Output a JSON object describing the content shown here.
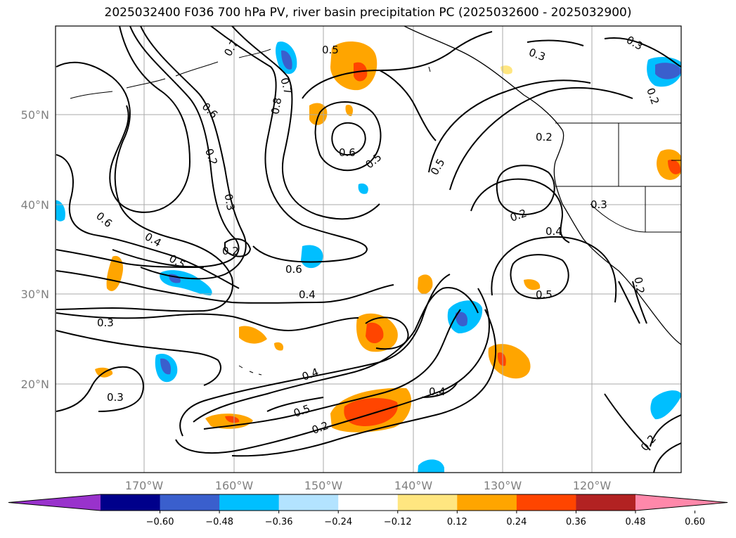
{
  "title": "2025032400 F036 700 hPa PV, river basin precipitation PC (2025032600 - 2025032900)",
  "map": {
    "lat_labels": [
      "50°N",
      "40°N",
      "30°N",
      "20°N"
    ],
    "lon_labels": [
      "170°W",
      "160°W",
      "150°W",
      "140°W",
      "130°W",
      "120°W"
    ],
    "contour_labels": [
      "0.5",
      "0.7",
      "0.7",
      "0.8",
      "0.6",
      "0.2",
      "0.3",
      "0.6",
      "0.5",
      "0.5",
      "0.3",
      "0.3",
      "0.2",
      "0.2",
      "0.3",
      "0.2",
      "0.4",
      "0.6",
      "0.4",
      "0.5",
      "0.6",
      "0.4",
      "0.5",
      "0.3",
      "0.3",
      "0.4",
      "0.5",
      "0.4",
      "0.2",
      "0.2",
      "0.2",
      "0.2"
    ],
    "colors": {
      "orange": "#ffa500",
      "red_orange": "#ff4500",
      "light_yellow": "#ffe680",
      "deep_sky_blue": "#00bfff",
      "light_blue": "#b3e3ff",
      "royal_blue": "#3a5fcd"
    }
  },
  "colorbar": {
    "ticks": [
      "−0.60",
      "−0.48",
      "−0.36",
      "−0.24",
      "−0.12",
      "0.12",
      "0.24",
      "0.36",
      "0.48",
      "0.60"
    ],
    "colors": [
      "#9932cc",
      "#00008b",
      "#3a5fcd",
      "#00bfff",
      "#b3e3ff",
      "#ffffff",
      "#ffe680",
      "#ffa500",
      "#ff4500",
      "#b22222",
      "#ff88aa"
    ]
  }
}
